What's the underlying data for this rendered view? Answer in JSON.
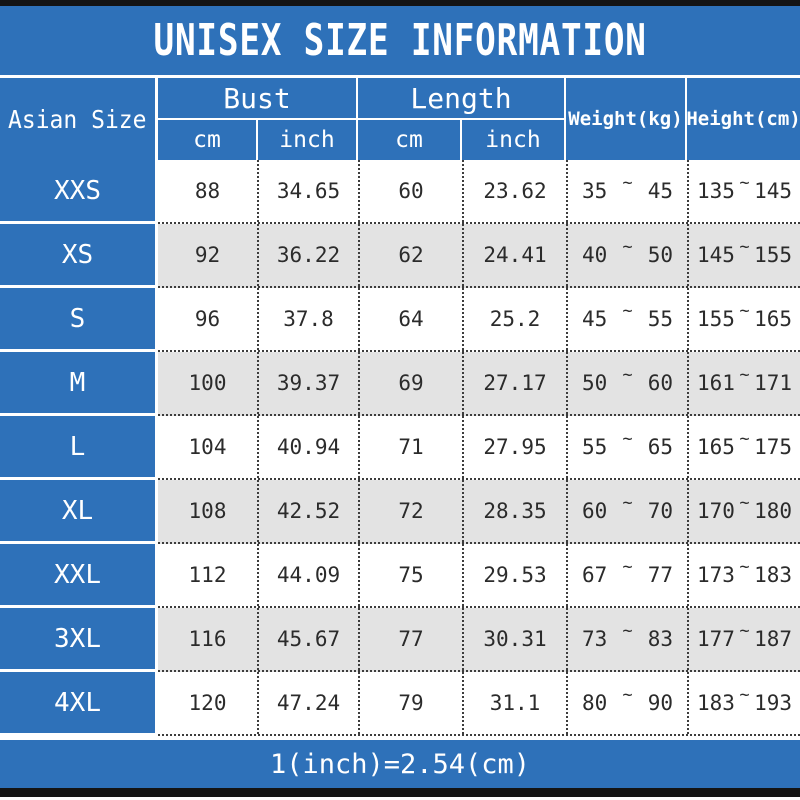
{
  "title": "UNISEX SIZE INFORMATION",
  "footer": {
    "note": "1(inch)=2.54(cm)"
  },
  "colors": {
    "accent_blue": "#2e71b9",
    "alt_row_gray": "#e3e3e3",
    "frame_black": "#141414",
    "dotted_border": "#3c3c3c",
    "text_dark": "#2b2b2b",
    "text_white": "#ffffff"
  },
  "table": {
    "corner_label": "Asian Size",
    "groups": [
      {
        "label": "Bust",
        "sub": [
          "cm",
          "inch"
        ]
      },
      {
        "label": "Length",
        "sub": [
          "cm",
          "inch"
        ]
      }
    ],
    "weight_label": "Weight(kg)",
    "height_label": "Height(cm)",
    "range_separator": "~",
    "rows": [
      {
        "size": "XXS",
        "bust_cm": "88",
        "bust_inch": "34.65",
        "length_cm": "60",
        "length_inch": "23.62",
        "weight_min": "35",
        "weight_max": "45",
        "height_min": "135",
        "height_max": "145"
      },
      {
        "size": "XS",
        "bust_cm": "92",
        "bust_inch": "36.22",
        "length_cm": "62",
        "length_inch": "24.41",
        "weight_min": "40",
        "weight_max": "50",
        "height_min": "145",
        "height_max": "155"
      },
      {
        "size": "S",
        "bust_cm": "96",
        "bust_inch": "37.8",
        "length_cm": "64",
        "length_inch": "25.2",
        "weight_min": "45",
        "weight_max": "55",
        "height_min": "155",
        "height_max": "165"
      },
      {
        "size": "M",
        "bust_cm": "100",
        "bust_inch": "39.37",
        "length_cm": "69",
        "length_inch": "27.17",
        "weight_min": "50",
        "weight_max": "60",
        "height_min": "161",
        "height_max": "171"
      },
      {
        "size": "L",
        "bust_cm": "104",
        "bust_inch": "40.94",
        "length_cm": "71",
        "length_inch": "27.95",
        "weight_min": "55",
        "weight_max": "65",
        "height_min": "165",
        "height_max": "175"
      },
      {
        "size": "XL",
        "bust_cm": "108",
        "bust_inch": "42.52",
        "length_cm": "72",
        "length_inch": "28.35",
        "weight_min": "60",
        "weight_max": "70",
        "height_min": "170",
        "height_max": "180"
      },
      {
        "size": "XXL",
        "bust_cm": "112",
        "bust_inch": "44.09",
        "length_cm": "75",
        "length_inch": "29.53",
        "weight_min": "67",
        "weight_max": "77",
        "height_min": "173",
        "height_max": "183"
      },
      {
        "size": "3XL",
        "bust_cm": "116",
        "bust_inch": "45.67",
        "length_cm": "77",
        "length_inch": "30.31",
        "weight_min": "73",
        "weight_max": "83",
        "height_min": "177",
        "height_max": "187"
      },
      {
        "size": "4XL",
        "bust_cm": "120",
        "bust_inch": "47.24",
        "length_cm": "79",
        "length_inch": "31.1",
        "weight_min": "80",
        "weight_max": "90",
        "height_min": "183",
        "height_max": "193"
      }
    ]
  }
}
